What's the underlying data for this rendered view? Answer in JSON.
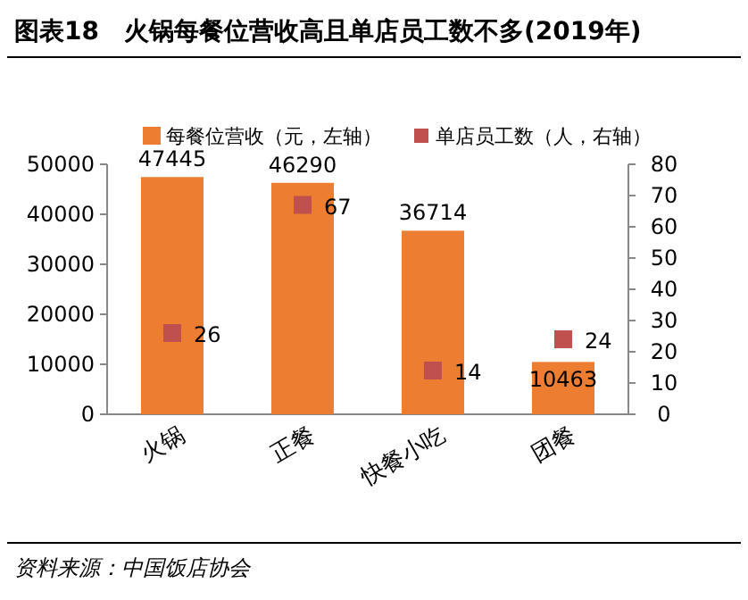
{
  "chart_data": {
    "type": "bar",
    "title": "图表18　火锅每餐位营收高且单店员工数不多(2019年)",
    "categories": [
      "火锅",
      "正餐",
      "快餐小吃",
      "团餐"
    ],
    "series": [
      {
        "name": "每餐位营收（元，左轴）",
        "color": "#ed7d31",
        "values": [
          47445,
          46290,
          36714,
          10463
        ]
      },
      {
        "name": "单店员工数（人，右轴）",
        "type": "scatter",
        "axis": "y2",
        "color": "#c0504d",
        "marker": "square",
        "values": [
          26,
          67,
          14,
          24
        ]
      }
    ],
    "ylim": [
      0,
      50000
    ],
    "yticks": [
      0,
      10000,
      20000,
      30000,
      40000,
      50000
    ],
    "y2lim": [
      0,
      80
    ],
    "y2ticks": [
      0,
      10,
      20,
      30,
      40,
      50,
      60,
      70,
      80
    ],
    "data_labels": true,
    "legend": "top",
    "grid": false,
    "annotations": [
      "资料来源：中国饭店协会"
    ]
  }
}
